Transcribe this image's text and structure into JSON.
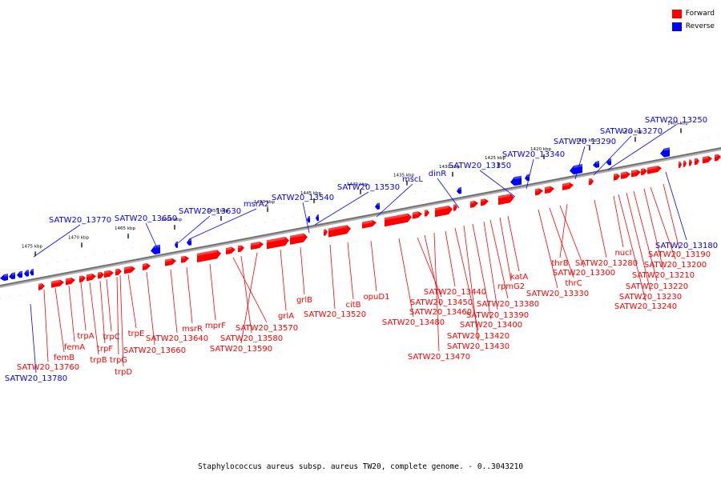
{
  "legend": [
    {
      "label": "Forward",
      "color": "#ff0000"
    },
    {
      "label": "Reverse",
      "color": "#0000ff"
    }
  ],
  "caption": "Staphylococcus aureus subsp. aureus TW20, complete genome. - 0..3043210",
  "colors": {
    "forward": "#ff0000",
    "reverse": "#0000ff",
    "axis": "#808080"
  },
  "ticks": [
    "1475 kbp",
    "1470 kbp",
    "1465 kbp",
    "1460 kbp",
    "1455 kbp",
    "1450 kbp",
    "1445 kbp",
    "1440 kbp",
    "1435 kbp",
    "1430 kbp",
    "1425 kbp",
    "1420 kbp",
    "1415 kbp",
    "1410 kbp",
    "1405 kbp"
  ],
  "reverse_labels": [
    "SATW20_13770",
    "SATW20_13650",
    "SATW20_13630",
    "msrA2",
    "SATW20_13540",
    "SATW20_13530",
    "mscL",
    "dinR",
    "SATW20_13350",
    "SATW20_13340",
    "SATW20_13290",
    "SATW20_13270",
    "SATW20_13250",
    "SATW20_13180",
    "SATW20_13780"
  ],
  "forward_labels": [
    "SATW20_13760",
    "femB",
    "femA",
    "trpA",
    "trpB",
    "trpF",
    "trpC",
    "trpG",
    "trpD",
    "trpE",
    "SATW20_13660",
    "SATW20_13640",
    "msrR",
    "mprF",
    "SATW20_13570",
    "SATW20_13580",
    "SATW20_13590",
    "grlA",
    "grlB",
    "SATW20_13520",
    "citB",
    "opuD1",
    "SATW20_13480",
    "SATW20_13470",
    "SATW20_13450",
    "SATW20_13460",
    "SATW20_13440",
    "SATW20_13420",
    "SATW20_13430",
    "SATW20_13400",
    "SATW20_13390",
    "SATW20_13380",
    "rpmG2",
    "katA",
    "SATW20_13330",
    "thrC",
    "SATW20_13300",
    "thrB",
    "SATW20_13280",
    "nucI",
    "SATW20_13240",
    "SATW20_13230",
    "SATW20_13220",
    "SATW20_13210",
    "SATW20_13200",
    "SATW20_13190"
  ]
}
